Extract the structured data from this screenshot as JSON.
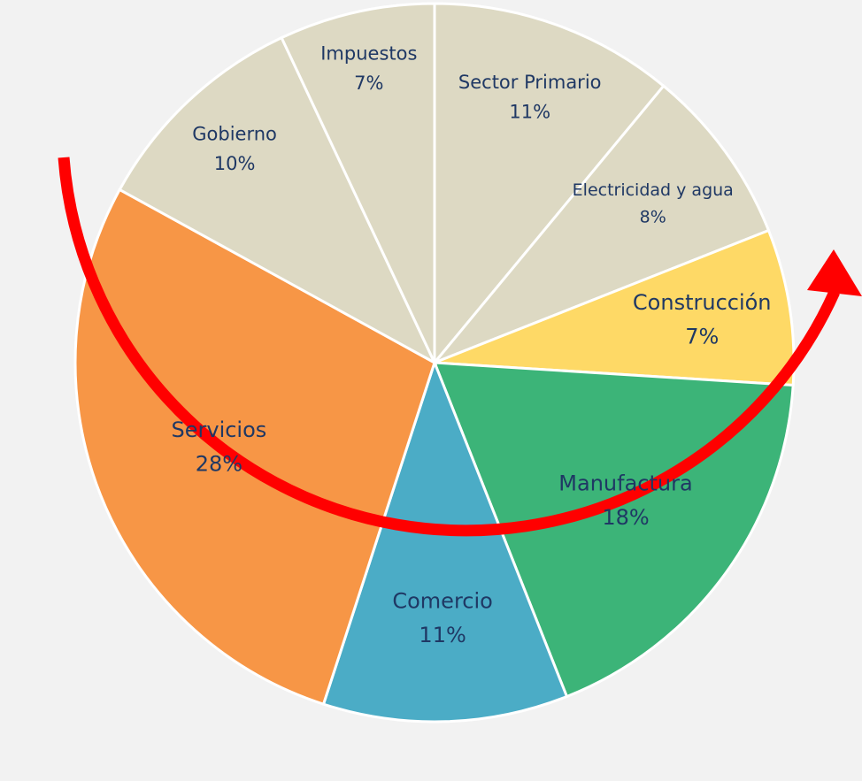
{
  "chart_data": {
    "type": "pie",
    "categories": [
      "Sector Primario",
      "Electricidad y agua",
      "Construcción",
      "Manufactura",
      "Comercio",
      "Servicios",
      "Gobierno",
      "Impuestos"
    ],
    "values": [
      11,
      8,
      7,
      18,
      11,
      28,
      10,
      7
    ],
    "value_labels": [
      "11%",
      "8%",
      "7%",
      "18%",
      "11%",
      "28%",
      "10%",
      "7%"
    ],
    "colors": [
      "#ddd9c3",
      "#ddd9c3",
      "#fed966",
      "#3cb478",
      "#4bacc6",
      "#f79646",
      "#ddd9c3",
      "#ddd9c3"
    ]
  }
}
